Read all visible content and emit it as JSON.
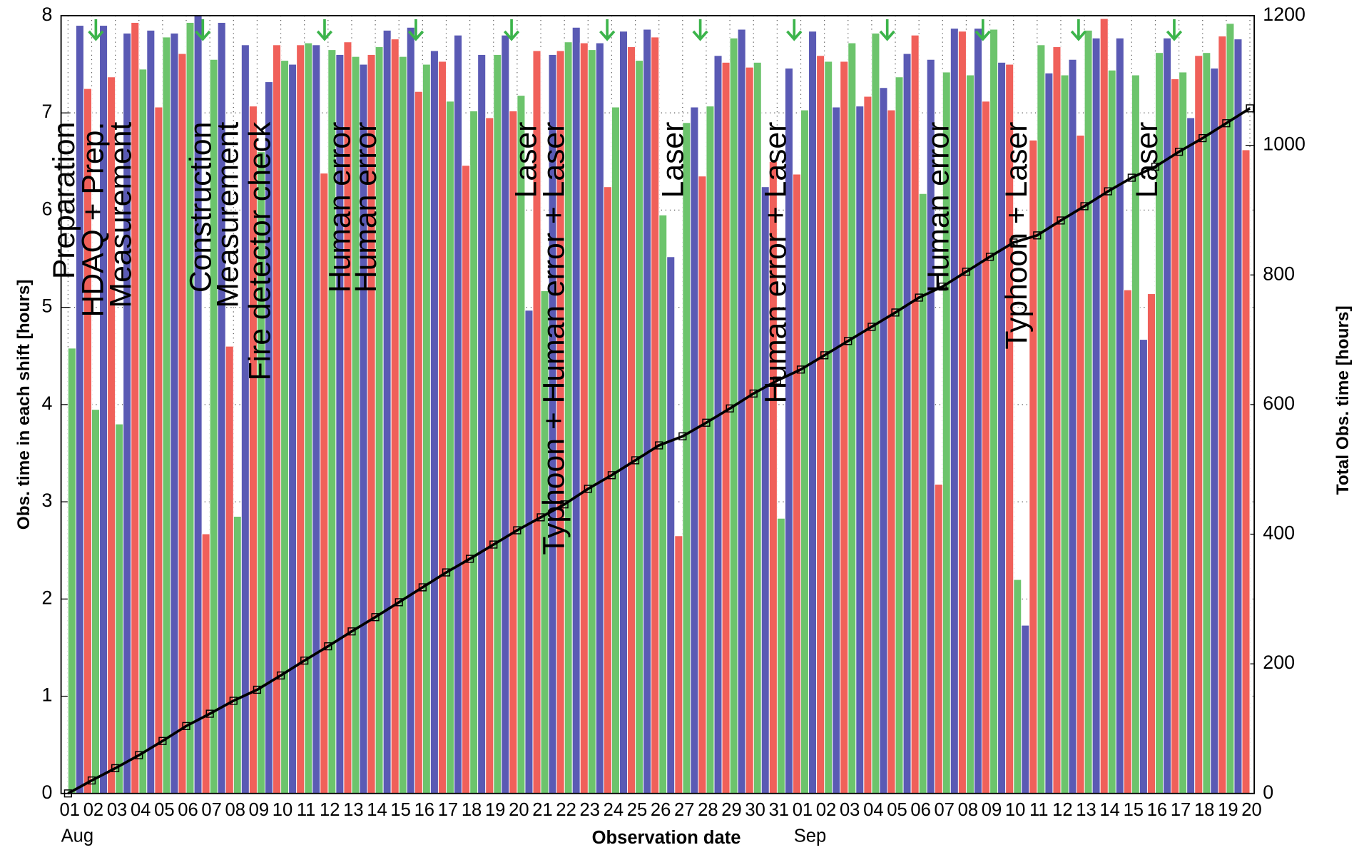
{
  "chart_data": {
    "type": "bar",
    "y_label": "Obs. time in each shift  [hours]",
    "y2_label": "Total Obs. time  [hours]",
    "x_label": "Observation date",
    "categories": [
      "01",
      "02",
      "03",
      "04",
      "05",
      "06",
      "07",
      "08",
      "09",
      "10",
      "11",
      "12",
      "13",
      "14",
      "15",
      "16",
      "17",
      "18",
      "19",
      "20",
      "21",
      "22",
      "23",
      "24",
      "25",
      "26",
      "27",
      "28",
      "29",
      "30",
      "31",
      "01",
      "02",
      "03",
      "04",
      "05",
      "06",
      "07",
      "08",
      "09",
      "10",
      "11",
      "12",
      "13",
      "14",
      "15",
      "16",
      "17",
      "18",
      "19",
      "20"
    ],
    "month_labels": [
      "Aug",
      null,
      null,
      null,
      null,
      null,
      null,
      null,
      null,
      null,
      null,
      null,
      null,
      null,
      null,
      null,
      null,
      null,
      null,
      null,
      null,
      null,
      null,
      null,
      null,
      null,
      null,
      null,
      null,
      null,
      null,
      "Sep",
      null,
      null,
      null,
      null,
      null,
      null,
      null,
      null,
      null,
      null,
      null,
      null,
      null,
      null,
      null,
      null,
      null,
      null,
      null
    ],
    "series": [
      {
        "color": "#6cc46c",
        "values": [
          4.58,
          3.95,
          3.8,
          7.45,
          7.78,
          7.93,
          7.55,
          2.85,
          6.6,
          7.54,
          7.72,
          7.65,
          7.58,
          7.68,
          7.58,
          7.5,
          7.12,
          7.02,
          7.6,
          7.18,
          5.17,
          7.73,
          7.65,
          7.06,
          7.54,
          5.95,
          6.9,
          7.07,
          7.77,
          7.52,
          2.83,
          7.03,
          7.53,
          7.72,
          7.82,
          7.37,
          6.17,
          7.42,
          7.39,
          7.86,
          2.2,
          7.7,
          7.39,
          7.85,
          7.44,
          7.39,
          7.62,
          7.42,
          7.62,
          7.92,
          null
        ]
      },
      {
        "color": "#5a5ab4",
        "values": [
          7.9,
          7.9,
          7.82,
          7.85,
          7.82,
          8.0,
          7.93,
          7.7,
          7.32,
          7.5,
          7.7,
          7.6,
          7.5,
          7.85,
          7.88,
          7.64,
          7.8,
          7.6,
          7.8,
          4.97,
          7.6,
          7.88,
          7.72,
          7.84,
          7.86,
          5.52,
          7.06,
          7.59,
          7.86,
          6.24,
          7.46,
          7.84,
          7.06,
          7.07,
          7.26,
          7.61,
          7.55,
          7.87,
          7.87,
          7.52,
          1.73,
          7.41,
          7.55,
          7.77,
          7.77,
          4.67,
          7.77,
          6.95,
          7.46,
          7.76,
          null
        ]
      },
      {
        "color": "#f0605a",
        "values": [
          7.25,
          7.37,
          7.93,
          7.06,
          7.61,
          2.67,
          4.6,
          7.07,
          7.7,
          7.7,
          6.38,
          7.73,
          7.6,
          7.76,
          7.22,
          7.53,
          6.46,
          6.95,
          7.02,
          7.64,
          7.64,
          7.72,
          6.24,
          7.68,
          7.78,
          2.65,
          6.35,
          7.52,
          7.47,
          6.5,
          6.37,
          7.59,
          7.53,
          7.17,
          7.03,
          7.8,
          3.18,
          7.84,
          7.12,
          7.5,
          6.72,
          7.68,
          6.77,
          7.97,
          5.18,
          5.14,
          7.35,
          7.59,
          7.79,
          6.62,
          null
        ]
      },
      {
        "axis": "y2",
        "color": "#000000",
        "values": [
          0,
          20,
          39,
          59,
          81,
          104,
          123,
          143,
          160,
          182,
          205,
          227,
          250,
          272,
          295,
          318,
          341,
          362,
          384,
          406,
          426,
          446,
          470,
          491,
          514,
          537,
          551,
          572,
          594,
          617,
          637,
          654,
          676,
          698,
          720,
          742,
          765,
          782,
          805,
          828,
          850,
          861,
          884,
          906,
          929,
          950,
          967,
          990,
          1011,
          1034,
          1057
        ]
      }
    ],
    "annotations": [
      "Preparation",
      "HDAQ + Prep.",
      "Measurement",
      "Construction",
      "Measurement",
      "Fire detector check",
      "Human error",
      "Human error",
      "Laser",
      "Typhoon + Human error + Laser",
      "Laser",
      "Human error + Laser",
      "Human error",
      "Typhoon + Laser",
      "Laser"
    ],
    "ylim": [
      0,
      8
    ],
    "yticks": [
      0,
      1,
      2,
      3,
      4,
      5,
      6,
      7,
      8
    ],
    "y2lim": [
      0,
      1200
    ],
    "y2ticks": [
      0,
      200,
      400,
      600,
      800,
      1000,
      1200
    ],
    "grid": true
  }
}
